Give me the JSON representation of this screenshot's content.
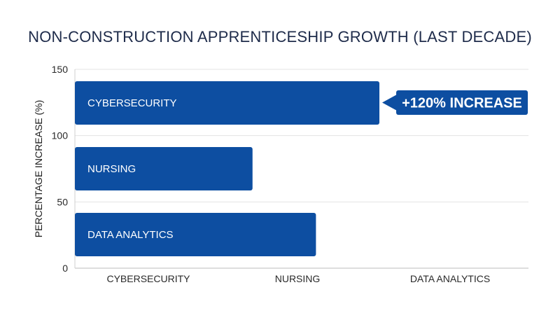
{
  "chart_data": {
    "type": "bar",
    "orientation": "horizontal",
    "title": "NON-CONSTRUCTION APPRENTICESHIP GROWTH (LAST DECADE)",
    "ylabel": "PERCENTAGE INCREASE (%)",
    "xlabel": "",
    "categories": [
      "CYBERSECURITY",
      "NURSING",
      "DATA ANALYTICS"
    ],
    "values": [
      120,
      70,
      95
    ],
    "value_axis_ticks": [
      "0",
      "50",
      "100",
      "150"
    ],
    "value_axis_range": [
      0,
      150
    ],
    "grid": true,
    "bar_color": "#0d4ea1",
    "annotation": {
      "text": "+120% INCREASE",
      "target_category": "CYBERSECURITY",
      "color": "#0d4ea1"
    }
  }
}
